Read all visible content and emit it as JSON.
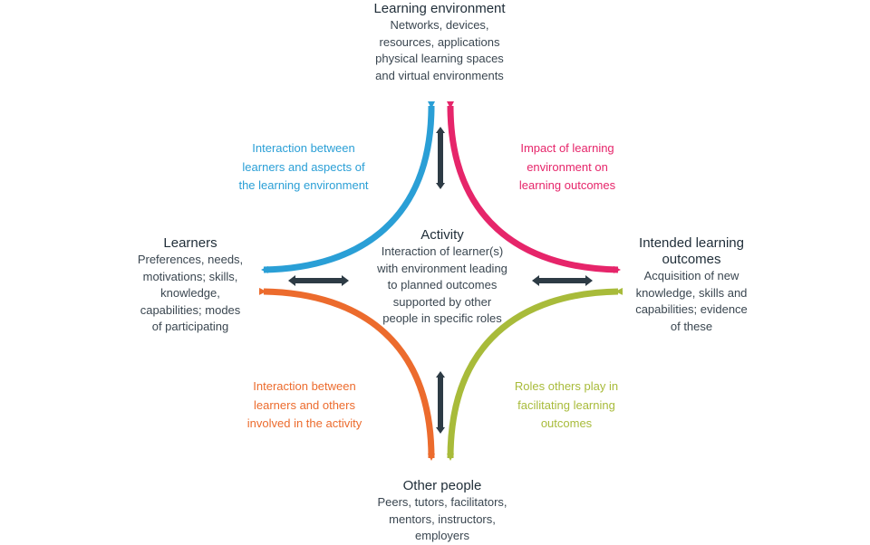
{
  "colors": {
    "blue": "#2a9fd6",
    "pink": "#e6256a",
    "orange": "#ec6b2d",
    "green": "#a8bb3a",
    "dark": "#2d3b45"
  },
  "nodes": {
    "top": {
      "title": "Learning environment",
      "lines": [
        "Networks, devices,",
        "resources, applications",
        "physical learning spaces",
        "and virtual environments"
      ]
    },
    "left": {
      "title": "Learners",
      "lines": [
        "Preferences, needs,",
        "motivations; skills,",
        "knowledge,",
        "capabilities; modes",
        "of participating"
      ]
    },
    "right": {
      "title_lines": [
        "Intended learning",
        "outcomes"
      ],
      "lines": [
        "Acquisition of new",
        "knowledge, skills and",
        "capabilities; evidence",
        "of these"
      ]
    },
    "bottom": {
      "title": "Other people",
      "lines": [
        "Peers, tutors, facilitators,",
        "mentors,  instructors,",
        "employers"
      ]
    },
    "center": {
      "title": "Activity",
      "lines": [
        "Interaction of learner(s)",
        "with environment leading",
        "to planned outcomes",
        "supported by other",
        "people in specific roles"
      ]
    }
  },
  "relations": {
    "top_left": [
      "Interaction between",
      "learners and aspects of",
      "the learning environment"
    ],
    "top_right": [
      "Impact of learning",
      "environment on",
      "learning outcomes"
    ],
    "bottom_left": [
      "Interaction between",
      "learners and others",
      "involved in the activity"
    ],
    "bottom_right": [
      "Roles others play in",
      "facilitating learning",
      "outcomes"
    ]
  }
}
